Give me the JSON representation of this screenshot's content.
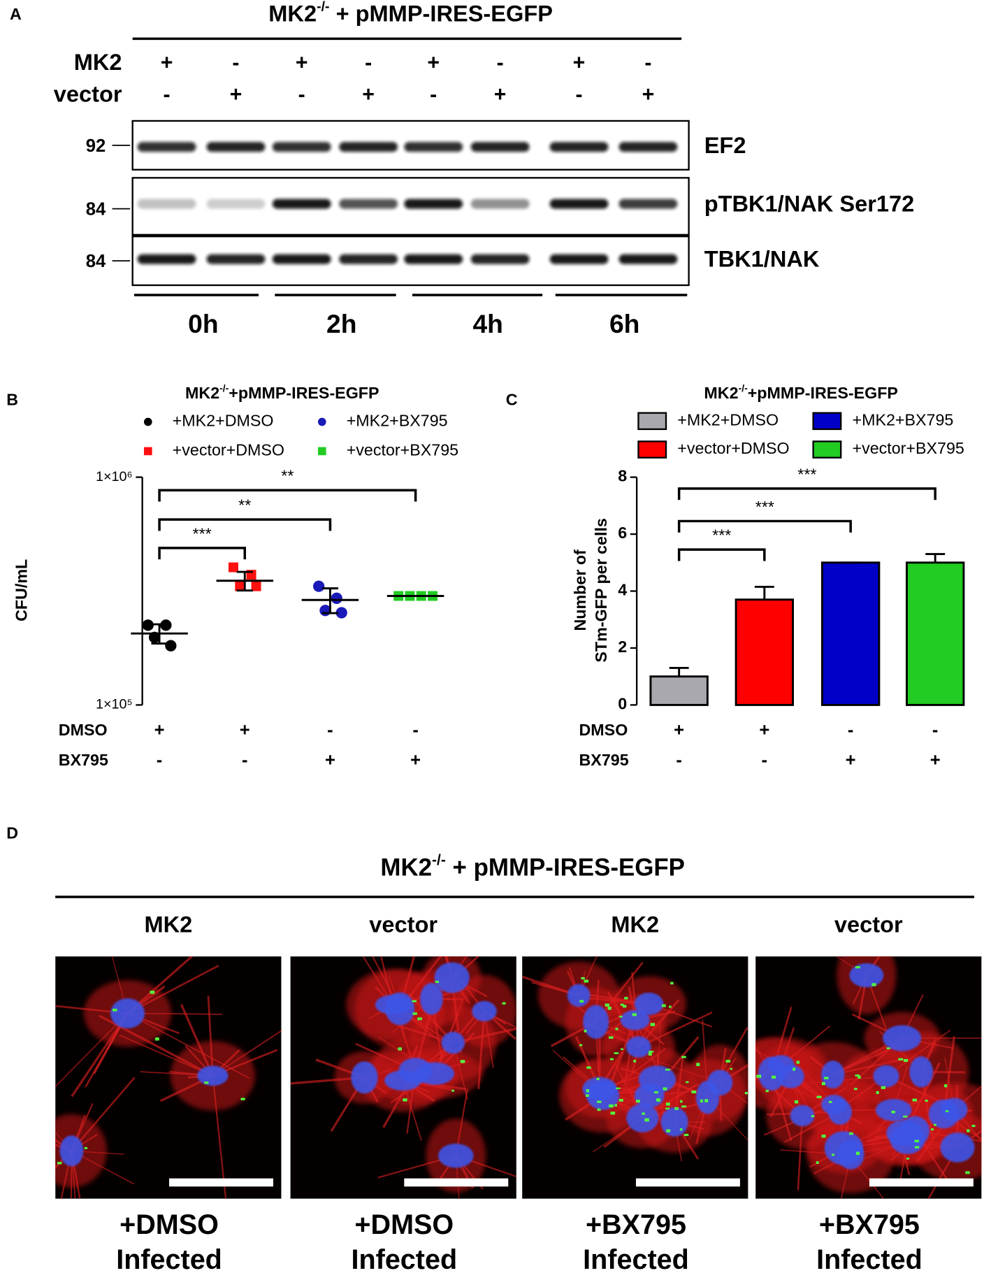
{
  "panels": {
    "a": "A",
    "b": "B",
    "c": "C",
    "d": "D"
  },
  "blot": {
    "title": {
      "base": "MK2",
      "sup": "-/-",
      "rest": " + pMMP-IRES-EGFP"
    },
    "rows": [
      {
        "name": "MK2",
        "signs": [
          "+",
          "-",
          "+",
          "-",
          "+",
          "-",
          "+",
          "-"
        ]
      },
      {
        "name": "vector",
        "signs": [
          "-",
          "+",
          "-",
          "+",
          "-",
          "+",
          "-",
          "+"
        ]
      }
    ],
    "bands": [
      {
        "name": "EF2",
        "marker": "92"
      },
      {
        "name": "pTBK1/NAK Ser172",
        "marker": "84"
      },
      {
        "name": "TBK1/NAK",
        "marker": "84"
      }
    ],
    "timepoints": [
      "0h",
      "2h",
      "4h",
      "6h"
    ]
  },
  "chart_data": [
    {
      "type": "scatter",
      "title": {
        "base": "MK2",
        "sup": "-/-",
        "rest": "+pMMP-IRES-EGFP"
      },
      "ylabel": "CFU/mL",
      "log_scale": true,
      "ylim": [
        100000,
        1000000
      ],
      "yticks": [
        {
          "value": 100000,
          "label": "1×10⁵"
        },
        {
          "value": 1000000,
          "label": "1×10⁶"
        }
      ],
      "series": [
        {
          "name": "+MK2+DMSO",
          "color": "#000000",
          "marker": "circle",
          "values": [
            224000,
            224000,
            198000,
            182000
          ],
          "mean": 206000,
          "error": 20000
        },
        {
          "name": "+vector+DMSO",
          "color": "#ff1010",
          "marker": "square",
          "values": [
            402000,
            373000,
            332000,
            332000
          ],
          "mean": 351000,
          "error": 33000
        },
        {
          "name": "+MK2+BX795",
          "color": "#1a1ab8",
          "marker": "circle",
          "values": [
            332000,
            294000,
            260000,
            254000
          ],
          "mean": 289000,
          "error": 36000
        },
        {
          "name": "+vector+BX795",
          "color": "#22cc22",
          "marker": "square",
          "values": [
            301000,
            301000,
            301000,
            301000
          ],
          "mean": 301000,
          "error": 0
        }
      ],
      "annotations": [
        "***",
        "**",
        "**"
      ],
      "conditions": [
        {
          "name": "DMSO",
          "signs": [
            "+",
            "+",
            "-",
            "-"
          ]
        },
        {
          "name": "BX795",
          "signs": [
            "-",
            "-",
            "+",
            "+"
          ]
        }
      ]
    },
    {
      "type": "bar",
      "title": {
        "base": "MK2",
        "sup": "-/-",
        "rest": "+pMMP-IRES-EGFP"
      },
      "ylabel": [
        "Number of",
        "STm-GFP per cells"
      ],
      "ylim": [
        0,
        8
      ],
      "yticks": [
        0,
        2,
        4,
        6,
        8
      ],
      "names": [
        "+MK2+DMSO",
        "+vector+DMSO",
        "+MK2+BX795",
        "+vector+BX795"
      ],
      "colors": [
        "#a8a8ae",
        "#ff0000",
        "#0000c8",
        "#22cc22"
      ],
      "values": [
        1.0,
        3.7,
        5.0,
        5.0
      ],
      "errors": [
        0.3,
        0.45,
        0,
        0.3
      ],
      "annotations": [
        "***",
        "***",
        "***"
      ],
      "conditions": [
        {
          "name": "DMSO",
          "signs": [
            "+",
            "+",
            "-",
            "-"
          ]
        },
        {
          "name": "BX795",
          "signs": [
            "-",
            "-",
            "+",
            "+"
          ]
        }
      ]
    }
  ],
  "images": {
    "title": {
      "base": "MK2",
      "sup": "-/-",
      "rest": " + pMMP-IRES-EGFP"
    },
    "columns": [
      {
        "label": "MK2",
        "treatment": "+DMSO",
        "state": "Infected"
      },
      {
        "label": "vector",
        "treatment": "+DMSO",
        "state": "Infected"
      },
      {
        "label": "MK2",
        "treatment": "+BX795",
        "state": "Infected"
      },
      {
        "label": "vector",
        "treatment": "+BX795",
        "state": "Infected"
      }
    ]
  }
}
